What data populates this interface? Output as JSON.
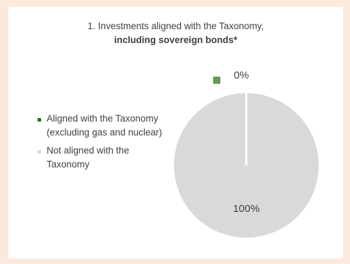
{
  "chart_data": {
    "type": "pie",
    "title": "1. Investments aligned with the Taxonomy,",
    "subtitle": "including sovereign bonds*",
    "categories": [
      "Aligned with the Taxonomy (excluding gas and nuclear)",
      "Not aligned with the Taxonomy"
    ],
    "values": [
      0,
      100
    ],
    "data_labels": [
      "0%",
      "100%"
    ],
    "colors": [
      "#3a8a2a",
      "#d9d9d9"
    ],
    "legend_marker_colors": [
      "#2a6a1a",
      "#d9d9d9"
    ],
    "label_marker_color": "#5ea34a",
    "legend_position": "left"
  }
}
